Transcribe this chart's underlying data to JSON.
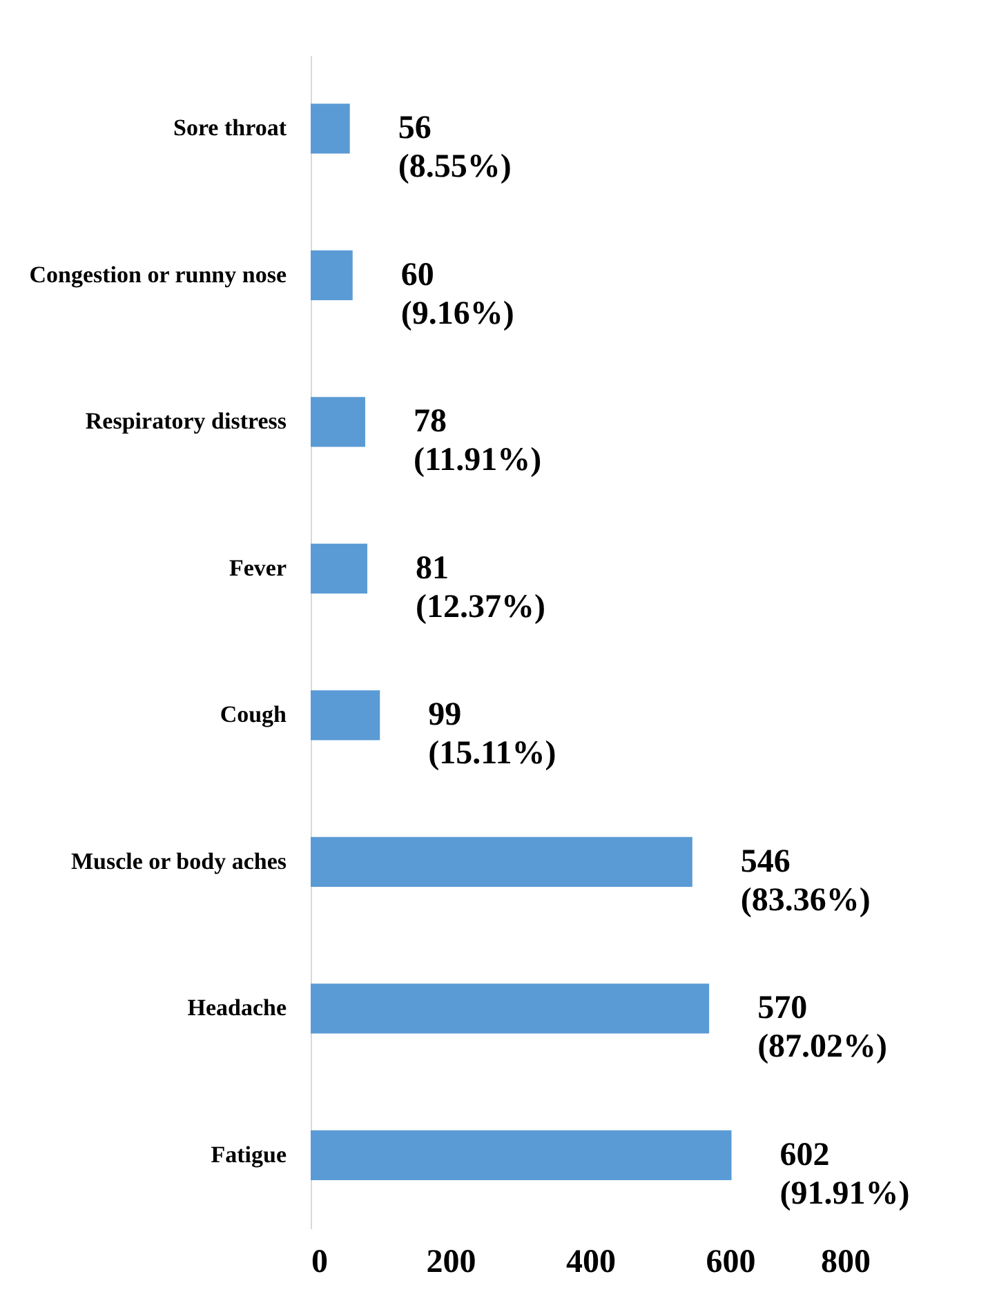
{
  "chart_data": {
    "type": "bar",
    "orientation": "horizontal",
    "categories": [
      "Sore throat",
      "Congestion or runny nose",
      "Respiratory distress",
      "Fever",
      "Cough",
      "Muscle or body aches",
      "Headache",
      "Fatigue"
    ],
    "values": [
      56,
      60,
      78,
      81,
      99,
      546,
      570,
      602
    ],
    "value_labels": [
      "56 (8.55%)",
      "60 (9.16%)",
      "78 (11.91%)",
      "81 (12.37%)",
      "99 (15.11%)",
      "546 (83.36%)",
      "570 (87.02%)",
      "602 (91.91%)"
    ],
    "color": "#5b9bd5",
    "xlim": [
      0,
      800
    ],
    "xticks": [
      0,
      200,
      400,
      600,
      800
    ],
    "grid": false
  }
}
